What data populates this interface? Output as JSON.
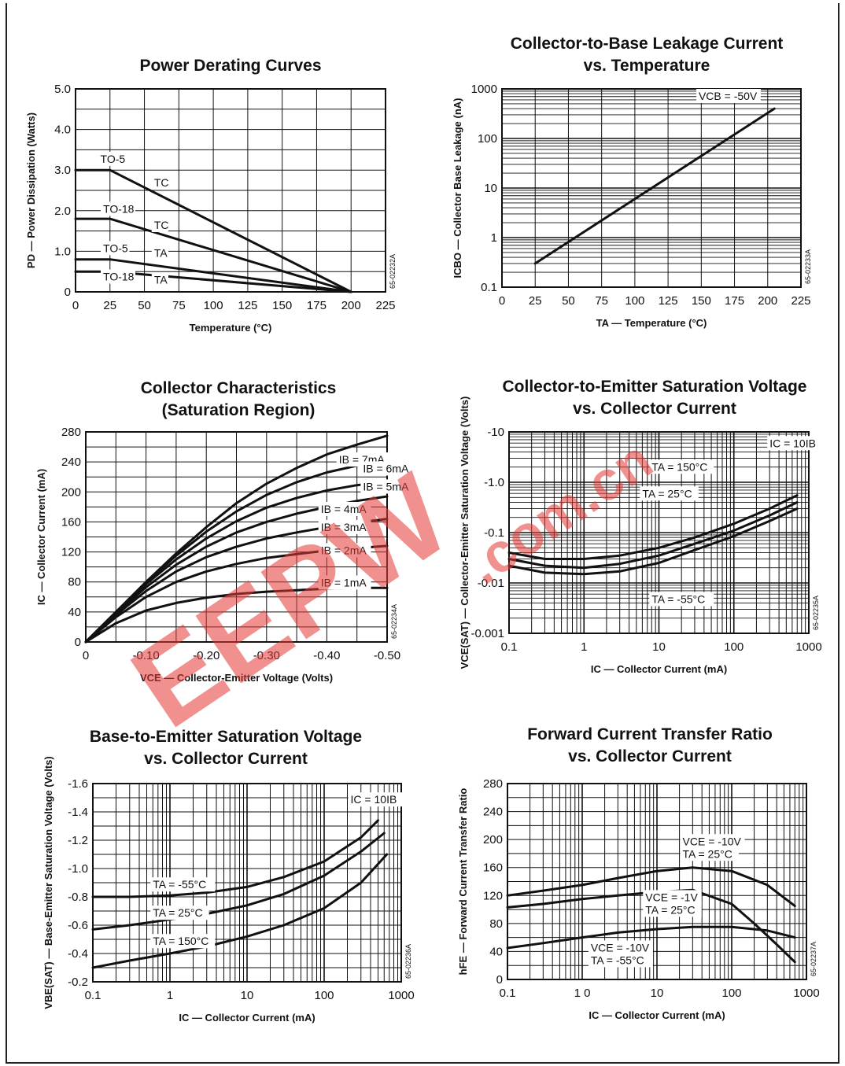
{
  "chart_data": [
    {
      "type": "line",
      "title": "Power Derating Curves",
      "xlabel": "Temperature (°C)",
      "ylabel": "PD — Power Dissipation (Watts)",
      "xlim": [
        0,
        225
      ],
      "ylim": [
        0,
        5.0
      ],
      "x_ticks": [
        "0",
        "25",
        "50",
        "75",
        "100",
        "125",
        "150",
        "175",
        "200",
        "225"
      ],
      "y_ticks": [
        "0",
        "1.0",
        "2.0",
        "3.0",
        "4.0",
        "5.0"
      ],
      "grid": true,
      "code": "65-02232A",
      "series": [
        {
          "name": "TO-5 TC",
          "x": [
            0,
            25,
            200
          ],
          "y": [
            3.0,
            3.0,
            0
          ]
        },
        {
          "name": "TO-18 TC",
          "x": [
            0,
            25,
            200
          ],
          "y": [
            1.8,
            1.8,
            0
          ]
        },
        {
          "name": "TO-5 TA",
          "x": [
            0,
            25,
            200
          ],
          "y": [
            0.8,
            0.8,
            0
          ]
        },
        {
          "name": "TO-18 TA",
          "x": [
            0,
            25,
            200
          ],
          "y": [
            0.5,
            0.5,
            0
          ]
        }
      ],
      "annotations": [
        {
          "text": "TO-5",
          "x": 18,
          "y": 3.18
        },
        {
          "text": "TC",
          "x": 57,
          "y": 2.6
        },
        {
          "text": "TO-18",
          "x": 20,
          "y": 1.95
        },
        {
          "text": "TC",
          "x": 57,
          "y": 1.55
        },
        {
          "text": "TO-5",
          "x": 20,
          "y": 0.98
        },
        {
          "text": "TA",
          "x": 57,
          "y": 0.86
        },
        {
          "text": "TO-18",
          "x": 20,
          "y": 0.28
        },
        {
          "text": "TA",
          "x": 57,
          "y": 0.2
        }
      ]
    },
    {
      "type": "line",
      "title": "Collector-to-Base Leakage Current",
      "subtitle": "vs. Temperature",
      "xlabel": "TA — Temperature (°C)",
      "ylabel": "ICBO — Collector Base Leakage (nA)",
      "xlim": [
        0,
        225
      ],
      "ylim": [
        0.1,
        1000
      ],
      "yscale": "log",
      "x_ticks": [
        "0",
        "25",
        "50",
        "75",
        "100",
        "125",
        "150",
        "175",
        "200",
        "225"
      ],
      "y_ticks": [
        "0.1",
        "1",
        "10",
        "100",
        "1000"
      ],
      "grid": true,
      "code": "65-02233A",
      "series": [
        {
          "name": "VCB = -50V",
          "x": [
            25,
            205
          ],
          "y": [
            0.3,
            400
          ]
        }
      ],
      "annotations": [
        {
          "text": "VCB = -50V",
          "x": 148,
          "y": 600
        }
      ]
    },
    {
      "type": "line",
      "title": "Collector Characteristics",
      "subtitle": "(Saturation Region)",
      "xlabel": "VCE — Collector-Emitter Voltage (Volts)",
      "ylabel": "IC — Collector Current (mA)",
      "xlim": [
        0,
        -0.5
      ],
      "ylim": [
        0,
        280
      ],
      "x_ticks": [
        "0",
        "-0.10",
        "-0.20",
        "-0.30",
        "-0.40",
        "-0.50"
      ],
      "y_ticks": [
        "0",
        "40",
        "80",
        "120",
        "160",
        "200",
        "240",
        "280"
      ],
      "grid": true,
      "code": "65-02234A",
      "series": [
        {
          "name": "IB = 7mA",
          "x": [
            0,
            0.05,
            0.1,
            0.15,
            0.2,
            0.25,
            0.3,
            0.35,
            0.4,
            0.45,
            0.5
          ],
          "y": [
            0,
            40,
            80,
            118,
            153,
            185,
            211,
            232,
            250,
            263,
            275
          ]
        },
        {
          "name": "IB = 6mA",
          "x": [
            0,
            0.05,
            0.1,
            0.15,
            0.2,
            0.25,
            0.3,
            0.35,
            0.4,
            0.45,
            0.5
          ],
          "y": [
            0,
            40,
            79,
            115,
            147,
            174,
            196,
            213,
            226,
            235,
            242
          ]
        },
        {
          "name": "IB = 5mA",
          "x": [
            0,
            0.05,
            0.1,
            0.15,
            0.2,
            0.25,
            0.3,
            0.35,
            0.4,
            0.45,
            0.5
          ],
          "y": [
            0,
            39,
            77,
            110,
            138,
            161,
            179,
            192,
            202,
            209,
            214
          ]
        },
        {
          "name": "IB = 4mA",
          "x": [
            0,
            0.05,
            0.1,
            0.15,
            0.2,
            0.25,
            0.3,
            0.35,
            0.4,
            0.45,
            0.5
          ],
          "y": [
            0,
            38,
            73,
            103,
            127,
            146,
            160,
            171,
            180,
            188,
            194
          ]
        },
        {
          "name": "IB = 3mA",
          "x": [
            0,
            0.05,
            0.1,
            0.15,
            0.2,
            0.25,
            0.3,
            0.35,
            0.4,
            0.45,
            0.5
          ],
          "y": [
            0,
            36,
            68,
            94,
            113,
            127,
            138,
            146,
            153,
            159,
            164
          ]
        },
        {
          "name": "IB = 2mA",
          "x": [
            0,
            0.05,
            0.1,
            0.15,
            0.2,
            0.25,
            0.3,
            0.35,
            0.4,
            0.45,
            0.5
          ],
          "y": [
            0,
            33,
            60,
            80,
            94,
            104,
            112,
            117,
            122,
            125,
            128
          ]
        },
        {
          "name": "IB = 1mA",
          "x": [
            0,
            0.05,
            0.1,
            0.15,
            0.2,
            0.25,
            0.3,
            0.35,
            0.4,
            0.45,
            0.5
          ],
          "y": [
            0,
            25,
            42,
            52,
            59,
            64,
            67,
            69,
            71,
            72,
            72
          ]
        }
      ],
      "annotations": [
        {
          "text": "IB = 7mA",
          "x": -0.42,
          "y": 238
        },
        {
          "text": "IB = 6mA",
          "x": -0.46,
          "y": 226
        },
        {
          "text": "IB = 5mA",
          "x": -0.46,
          "y": 202
        },
        {
          "text": "IB = 4mA",
          "x": -0.39,
          "y": 172
        },
        {
          "text": "IB = 3mA",
          "x": -0.39,
          "y": 148
        },
        {
          "text": "IB = 2mA",
          "x": -0.39,
          "y": 117
        },
        {
          "text": "IB = 1mA",
          "x": -0.39,
          "y": 74
        }
      ]
    },
    {
      "type": "line",
      "title": "Collector-to-Emitter Saturation Voltage",
      "subtitle": "vs. Collector Current",
      "xlabel": "IC — Collector Current (mA)",
      "ylabel": "VCE(SAT) — Collector-Emitter Saturation Voltage (Volts)",
      "xlim": [
        0.1,
        1000
      ],
      "ylim": [
        -0.001,
        -10
      ],
      "xscale": "log",
      "yscale": "log",
      "x_ticks": [
        "0.1",
        "1",
        "10",
        "100",
        "1000"
      ],
      "y_ticks": [
        "-0.001",
        "-0.01",
        "-0.1",
        "-1.0",
        "-10"
      ],
      "grid": true,
      "code": "65-02235A",
      "series": [
        {
          "name": "TA = 150°C",
          "x": [
            0.1,
            0.3,
            1,
            3,
            10,
            30,
            100,
            300,
            700
          ],
          "y": [
            -0.04,
            -0.03,
            -0.03,
            -0.035,
            -0.05,
            -0.08,
            -0.15,
            -0.3,
            -0.55
          ]
        },
        {
          "name": "TA = 25°C",
          "x": [
            0.1,
            0.3,
            1,
            3,
            10,
            30,
            100,
            300,
            700
          ],
          "y": [
            -0.03,
            -0.022,
            -0.02,
            -0.024,
            -0.035,
            -0.06,
            -0.11,
            -0.22,
            -0.4
          ]
        },
        {
          "name": "TA = -55°C",
          "x": [
            0.1,
            0.3,
            1,
            3,
            10,
            30,
            100,
            300,
            700
          ],
          "y": [
            -0.022,
            -0.016,
            -0.015,
            -0.017,
            -0.025,
            -0.045,
            -0.085,
            -0.17,
            -0.3
          ]
        }
      ],
      "annotations": [
        {
          "text": "IC = 10IB",
          "x": 300,
          "y": -5
        },
        {
          "text": "TA = 150°C",
          "x": 8,
          "y": -1.7
        },
        {
          "text": "TA = 25°C",
          "x": 6,
          "y": -0.5
        },
        {
          "text": "TA = -55°C",
          "x": 8,
          "y": -0.004
        }
      ]
    },
    {
      "type": "line",
      "title": "Base-to-Emitter Saturation Voltage",
      "subtitle": "vs. Collector Current",
      "xlabel": "IC — Collector Current (mA)",
      "ylabel": "VBE(SAT) — Base-Emitter Saturation Voltage (Volts)",
      "xlim": [
        0.1,
        1000
      ],
      "ylim": [
        -0.2,
        -1.6
      ],
      "xscale": "log",
      "x_ticks": [
        "0.1",
        "1",
        "10",
        "100",
        "1000"
      ],
      "y_ticks": [
        "-0.2",
        "-0.4",
        "-0.6",
        "-0.8",
        "-1.0",
        "-1.2",
        "-1.4",
        "-1.6"
      ],
      "grid": true,
      "code": "65-02236A",
      "series": [
        {
          "name": "TA = -55°C",
          "x": [
            0.1,
            0.3,
            1,
            3,
            10,
            30,
            100,
            300,
            500
          ],
          "y": [
            -0.8,
            -0.8,
            -0.81,
            -0.83,
            -0.87,
            -0.94,
            -1.05,
            -1.22,
            -1.34
          ]
        },
        {
          "name": "TA = 25°C",
          "x": [
            0.1,
            0.3,
            1,
            3,
            10,
            30,
            100,
            300,
            600
          ],
          "y": [
            -0.57,
            -0.6,
            -0.64,
            -0.68,
            -0.74,
            -0.82,
            -0.95,
            -1.12,
            -1.25
          ]
        },
        {
          "name": "TA = 150°C",
          "x": [
            0.1,
            0.3,
            1,
            3,
            10,
            30,
            100,
            300,
            650
          ],
          "y": [
            -0.3,
            -0.35,
            -0.4,
            -0.45,
            -0.52,
            -0.6,
            -0.72,
            -0.9,
            -1.1
          ]
        }
      ],
      "annotations": [
        {
          "text": "IC = 10IB",
          "x": 220,
          "y": -1.46
        },
        {
          "text": "TA = -55°C",
          "x": 0.6,
          "y": -0.86
        },
        {
          "text": "TA = 25°C",
          "x": 0.6,
          "y": -0.66
        },
        {
          "text": "TA = 150°C",
          "x": 0.6,
          "y": -0.46
        }
      ]
    },
    {
      "type": "line",
      "title": "Forward Current Transfer Ratio",
      "subtitle": "vs. Collector Current",
      "xlabel": "IC — Collector Current (mA)",
      "ylabel": "hFE — Forward Current Transfer Ratio",
      "xlim": [
        0.1,
        1000
      ],
      "ylim": [
        0,
        280
      ],
      "xscale": "log",
      "x_ticks": [
        "0.1",
        "1 0",
        "10",
        "100",
        "1000"
      ],
      "y_ticks": [
        "0",
        "40",
        "80",
        "120",
        "160",
        "200",
        "240",
        "280"
      ],
      "grid": true,
      "code": "65-02237A",
      "series": [
        {
          "name": "VCE = -10V TA = 25°C",
          "x": [
            0.1,
            0.3,
            1,
            3,
            10,
            30,
            100,
            300,
            700
          ],
          "y": [
            120,
            127,
            135,
            145,
            155,
            160,
            155,
            135,
            105
          ]
        },
        {
          "name": "VCE = -1V TA = 25°C",
          "x": [
            0.1,
            0.3,
            1,
            3,
            10,
            30,
            100,
            200,
            400,
            700
          ],
          "y": [
            103,
            108,
            115,
            120,
            125,
            128,
            108,
            80,
            50,
            25
          ]
        },
        {
          "name": "VCE = -10V TA = -55°C",
          "x": [
            0.1,
            0.3,
            1,
            3,
            10,
            30,
            100,
            300,
            700
          ],
          "y": [
            45,
            52,
            60,
            67,
            72,
            75,
            75,
            70,
            60
          ]
        }
      ],
      "annotations": [
        {
          "text": "VCE = -10V",
          "x": 22,
          "y": 192
        },
        {
          "text": "TA = 25°C",
          "x": 22,
          "y": 174
        },
        {
          "text": "VCE = -1V",
          "x": 7,
          "y": 112
        },
        {
          "text": "TA = 25°C",
          "x": 7,
          "y": 94
        },
        {
          "text": "VCE = -10V",
          "x": 1.3,
          "y": 40
        },
        {
          "text": "TA = -55°C",
          "x": 1.3,
          "y": 22
        }
      ]
    }
  ],
  "watermark": {
    "text": "EEPW",
    "subtext": ".com.cn",
    "color": "#e53935"
  }
}
